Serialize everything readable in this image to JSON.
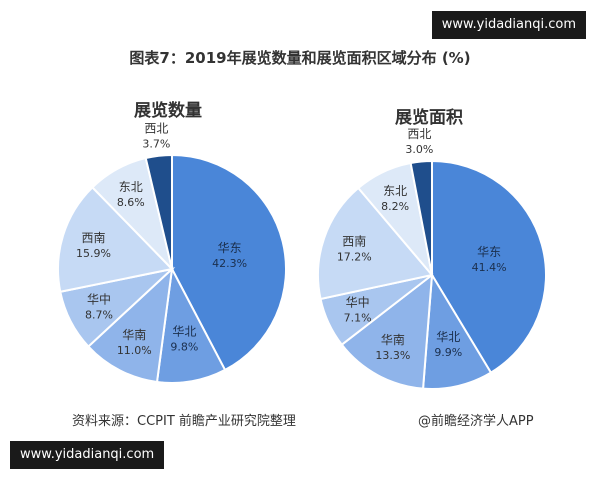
{
  "watermark_top": "www.yidadianqi.com",
  "watermark_bottom": "www.yidadianqi.com",
  "title": "图表7：2019年展览数量和展览面积区域分布 (%)",
  "source": "资料来源：CCPIT 前瞻产业研究院整理",
  "credit": "@前瞻经济学人APP",
  "chart_data": [
    {
      "type": "pie",
      "title": "展览数量",
      "labels": [
        "华东",
        "华北",
        "华南",
        "华中",
        "西南",
        "东北",
        "西北"
      ],
      "values": [
        42.3,
        9.8,
        11.0,
        8.7,
        15.9,
        8.6,
        3.7
      ],
      "value_labels": [
        "42.3%",
        "9.8%",
        "11.0%",
        "8.7%",
        "15.9%",
        "8.6%",
        "3.7%"
      ],
      "colors": [
        "#4a86d8",
        "#6e9ee2",
        "#8fb4ea",
        "#a9c6ef",
        "#c6daf5",
        "#dde9f8",
        "#1f4e8c"
      ]
    },
    {
      "type": "pie",
      "title": "展览面积",
      "labels": [
        "华东",
        "华北",
        "华南",
        "华中",
        "西南",
        "东北",
        "西北"
      ],
      "values": [
        41.4,
        9.9,
        13.3,
        7.1,
        17.2,
        8.2,
        3.0
      ],
      "value_labels": [
        "41.4%",
        "9.9%",
        "13.3%",
        "7.1%",
        "17.2%",
        "8.2%",
        "3.0%"
      ],
      "colors": [
        "#4a86d8",
        "#6e9ee2",
        "#8fb4ea",
        "#a9c6ef",
        "#c6daf5",
        "#dde9f8",
        "#1f4e8c"
      ]
    }
  ]
}
